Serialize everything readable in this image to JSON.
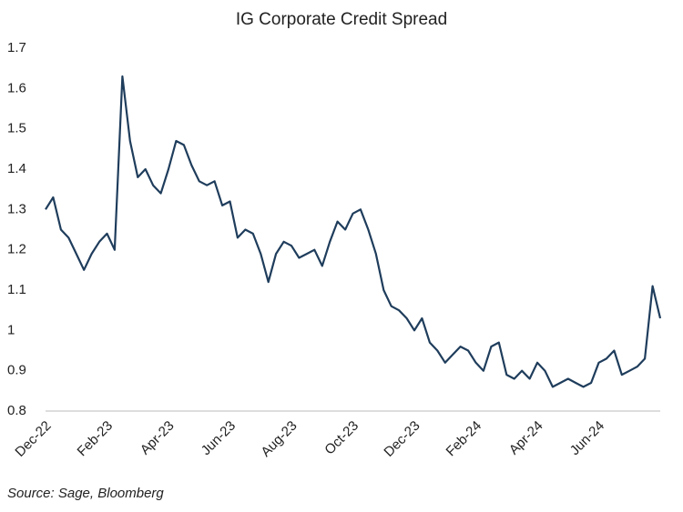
{
  "chart_data": {
    "type": "line",
    "title": "IG Corporate Credit Spread",
    "source": "Source: Sage, Bloomberg",
    "categories": [
      "Dec-22",
      null,
      null,
      null,
      null,
      null,
      null,
      null,
      "Feb-23",
      null,
      null,
      null,
      null,
      null,
      null,
      null,
      "Apr-23",
      null,
      null,
      null,
      null,
      null,
      null,
      null,
      "Jun-23",
      null,
      null,
      null,
      null,
      null,
      null,
      null,
      "Aug-23",
      null,
      null,
      null,
      null,
      null,
      null,
      null,
      "Oct-23",
      null,
      null,
      null,
      null,
      null,
      null,
      null,
      "Dec-23",
      null,
      null,
      null,
      null,
      null,
      null,
      null,
      "Feb-24",
      null,
      null,
      null,
      null,
      null,
      null,
      null,
      "Apr-24",
      null,
      null,
      null,
      null,
      null,
      null,
      null,
      "Jun-24",
      null,
      null,
      null,
      null,
      null,
      null,
      null,
      null
    ],
    "series": [
      {
        "name": "IG Corporate Credit Spread",
        "color": "#1f3d5c",
        "values": [
          1.3,
          1.33,
          1.25,
          1.23,
          1.19,
          1.15,
          1.19,
          1.22,
          1.24,
          1.2,
          1.63,
          1.47,
          1.38,
          1.4,
          1.36,
          1.34,
          1.4,
          1.47,
          1.46,
          1.41,
          1.37,
          1.36,
          1.37,
          1.31,
          1.32,
          1.23,
          1.25,
          1.24,
          1.19,
          1.12,
          1.19,
          1.22,
          1.21,
          1.18,
          1.19,
          1.2,
          1.16,
          1.22,
          1.27,
          1.25,
          1.29,
          1.3,
          1.25,
          1.19,
          1.1,
          1.06,
          1.05,
          1.03,
          1.0,
          1.03,
          0.97,
          0.95,
          0.92,
          0.94,
          0.96,
          0.95,
          0.92,
          0.9,
          0.96,
          0.97,
          0.89,
          0.88,
          0.9,
          0.88,
          0.92,
          0.9,
          0.86,
          0.87,
          0.88,
          0.87,
          0.86,
          0.87,
          0.92,
          0.93,
          0.95,
          0.89,
          0.9,
          0.91,
          0.93,
          1.11,
          1.03
        ]
      }
    ],
    "ylim": [
      0.8,
      1.7
    ],
    "yticks": [
      0.8,
      0.9,
      1,
      1.1,
      1.2,
      1.3,
      1.4,
      1.5,
      1.6,
      1.7
    ],
    "grid": false
  }
}
